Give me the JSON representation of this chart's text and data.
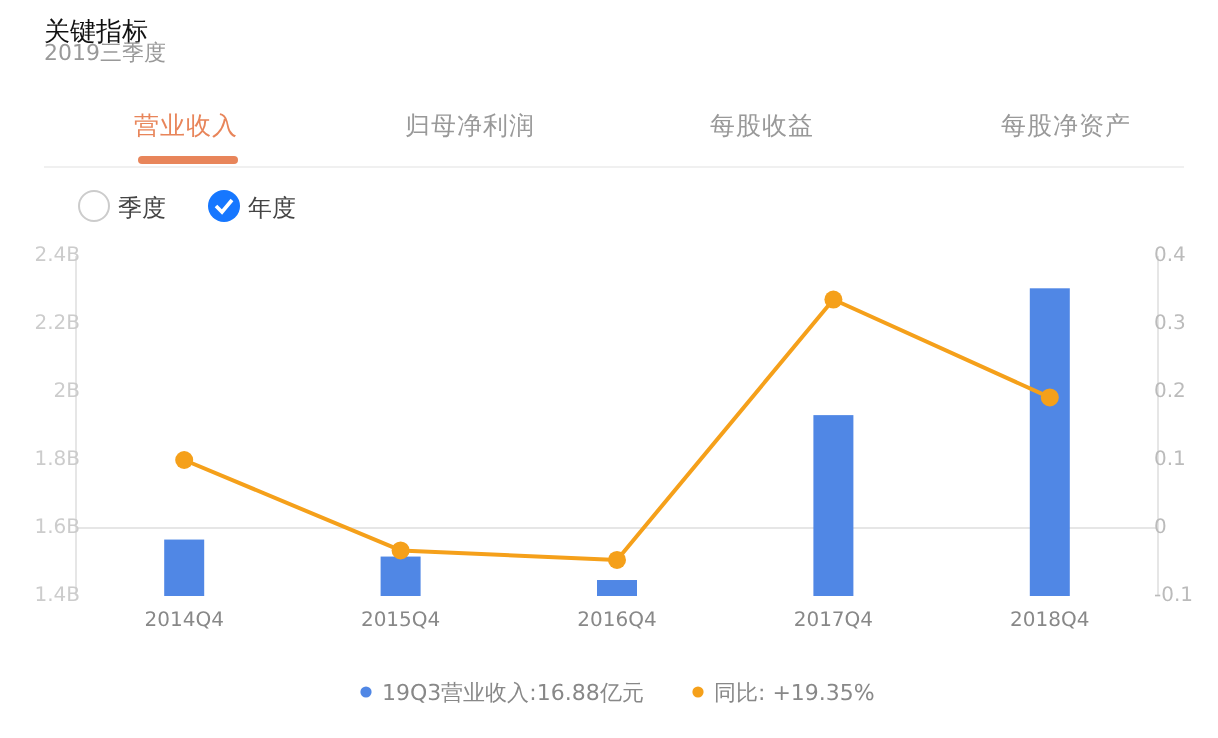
{
  "chart_data": {
    "type": "bar",
    "title": "关键指标",
    "subtitle": "2019三季度",
    "annotations": [
      "营业收入",
      "归母净利润",
      "每股收益",
      "每股净资产",
      "季度",
      "年度"
    ],
    "categories": [
      "2014Q4",
      "2015Q4",
      "2016Q4",
      "2017Q4",
      "2018Q4"
    ],
    "series": [
      {
        "name": "19Q3营业收入:16.88亿元",
        "color": "#5087e5",
        "values": [
          1.566,
          1.516,
          1.447,
          1.932,
          2.305
        ]
      },
      {
        "name": "同比: +19.35%",
        "type": "line",
        "axis": "y2",
        "color": "#f5a01a",
        "values": [
          0.1,
          -0.033,
          -0.047,
          0.336,
          0.192
        ]
      }
    ],
    "ylim": [
      1.4,
      2.4
    ],
    "yticks": [
      {
        "value": 1.4,
        "label": "1.4B"
      },
      {
        "value": 1.6,
        "label": "1.6B"
      },
      {
        "value": 1.8,
        "label": "1.8B"
      },
      {
        "value": 2.0,
        "label": "2B"
      },
      {
        "value": 2.2,
        "label": "2.2B"
      },
      {
        "value": 2.4,
        "label": "2.4B"
      }
    ],
    "y2lim": [
      -0.1,
      0.4
    ],
    "y2ticks": [
      -0.1,
      0,
      0.1,
      0.2,
      0.3,
      0.4
    ],
    "ref_lines": [
      {
        "axis": "y2",
        "value": 0,
        "color": "#e6e6e6"
      }
    ],
    "marker": "circle",
    "legend": "bottom",
    "grid": false
  }
}
